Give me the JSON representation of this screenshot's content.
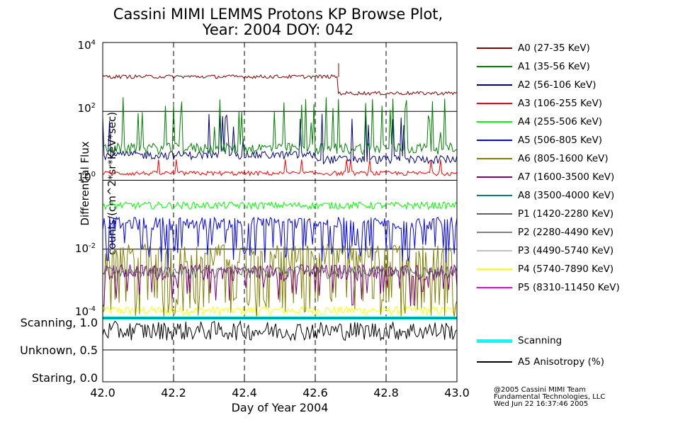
{
  "title_line1": "Cassini MIMI LEMMS Protons KP Browse Plot,",
  "title_line2": "Year: 2004 DOY: 042",
  "ylabel_line1": "Differential Flux",
  "ylabel_line2": "counts/(cm^2*sr*KeV*sec)",
  "xlabel": "Day of Year 2004",
  "state_labels": [
    "Scanning, 1.0",
    "Unknown, 0.5",
    "Staring, 0.0"
  ],
  "credit": [
    "@2005 Cassini MIMI Team",
    "Fundamental Technologies, LLC",
    "Wed Jun 22 16:37:46 2005"
  ],
  "chart_data": [
    {
      "type": "line",
      "title": "Cassini MIMI LEMMS Protons KP Browse Plot, Year: 2004 DOY: 042",
      "xlabel": "Day of Year 2004",
      "ylabel": "Differential Flux counts/(cm^2*sr*KeV*sec)",
      "yscale": "log",
      "xlim": [
        42.0,
        43.0
      ],
      "ylim": [
        0.0001,
        10000
      ],
      "xticks": [
        "42.0",
        "42.2",
        "42.4",
        "42.6",
        "42.8",
        "43.0"
      ],
      "yticks": [
        "10^4",
        "10^2",
        "10^0",
        "10^-2",
        "10^-4"
      ],
      "grid": true,
      "legend": "right",
      "series": [
        {
          "name": "A0 (27-35 KeV)",
          "color": "#800000",
          "segments": [
            {
              "x": [
                42.0,
                42.665
              ],
              "y": 1000
            },
            {
              "x": [
                42.668,
                43.0
              ],
              "y": 330
            }
          ],
          "spike": {
            "x": 42.666,
            "y": 2500
          }
        },
        {
          "name": "A1 (35-56 KeV)",
          "color": "#008000",
          "typical": 8,
          "peak": 300
        },
        {
          "name": "A2 (56-106 KeV)",
          "color": "#000080",
          "typical": 5,
          "peak": 100
        },
        {
          "name": "A3 (106-255 KeV)",
          "color": "#ff0000",
          "typical": 1.6,
          "peak": 4
        },
        {
          "name": "A4 (255-506 KeV)",
          "color": "#00ff00",
          "typical": 0.18
        },
        {
          "name": "A5 (506-805 KeV)",
          "color": "#0000ff",
          "typical": 0.05,
          "min": 0.003
        },
        {
          "name": "A6 (805-1600 KeV)",
          "color": "#808000",
          "typical": 0.005,
          "min": 0.0001
        },
        {
          "name": "A7 (1600-3500 KeV)",
          "color": "#800080",
          "typical": 0.002,
          "min": 0.0002
        },
        {
          "name": "A8 (3500-4000 KeV)",
          "color": "#008080"
        },
        {
          "name": "P1 (1420-2280 KeV)",
          "color": "#606060",
          "typical": 0.002
        },
        {
          "name": "P2 (2280-4490 KeV)",
          "color": "#808080"
        },
        {
          "name": "P3 (4490-5740 KeV)",
          "color": "#c0c0c0"
        },
        {
          "name": "P4 (5740-7890 KeV)",
          "color": "#ffff00",
          "typical": 0.00012
        },
        {
          "name": "P5 (8310-11450 KeV)",
          "color": "#ff00ff"
        }
      ]
    },
    {
      "type": "line",
      "xlim": [
        42.0,
        43.0
      ],
      "ylim": [
        0.0,
        1.0
      ],
      "yticks": [
        "Staring, 0.0",
        "Unknown, 0.5",
        "Scanning, 1.0"
      ],
      "legend": "right",
      "series": [
        {
          "name": "Scanning",
          "color": "#00ffff",
          "value": 1.0
        },
        {
          "name": "A5 Anisotropy (%)",
          "color": "#000000",
          "typical": 0.8
        }
      ]
    }
  ]
}
